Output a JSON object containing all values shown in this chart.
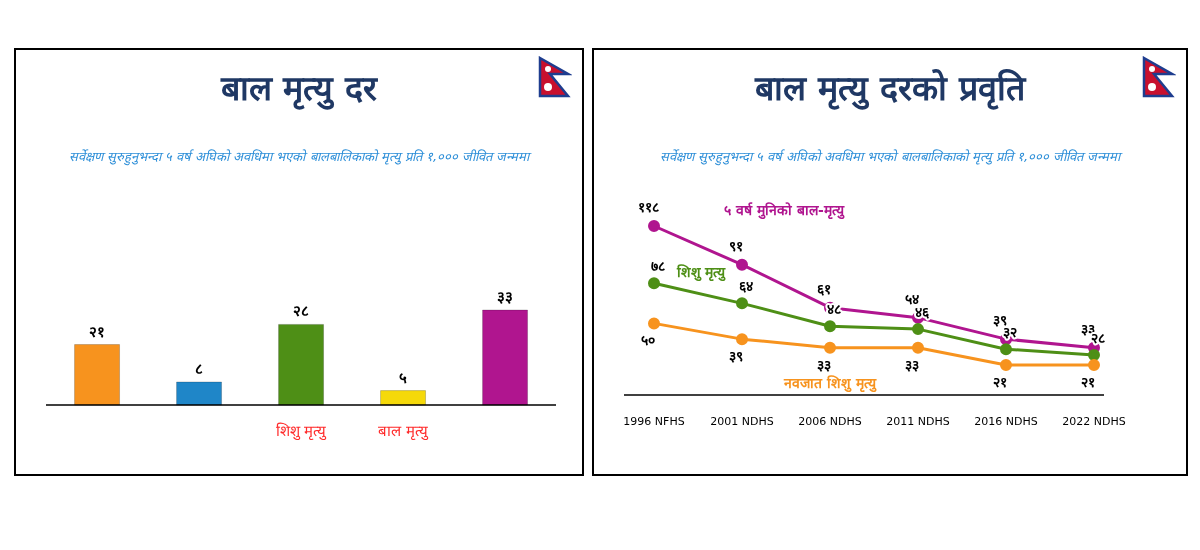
{
  "chart_data": [
    {
      "type": "bar",
      "title": "बाल मृत्यु दर",
      "subtitle": "सर्वेक्षण सुरुहुनुभन्दा ५ वर्ष अघिको अवधिमा भएको बालबालिकाको मृत्यु प्रति १,००० जीवित जन्ममा",
      "categories": [
        null,
        null,
        "शिशु मृत्यु",
        "बाल मृत्यु",
        null
      ],
      "values": [
        21,
        8,
        28,
        5,
        33
      ],
      "colors": [
        "#f7931e",
        "#1f86c8",
        "#4e8f16",
        "#f5d90a",
        "#b0158f"
      ],
      "value_labels": [
        "२१",
        "८",
        "२८",
        "५",
        "३३"
      ],
      "legend": false,
      "grid": false
    },
    {
      "type": "line",
      "title": "बाल मृत्यु दरको प्रवृति",
      "subtitle": "सर्वेक्षण सुरुहुनुभन्दा ५ वर्ष अघिको अवधिमा भएको बालबालिकाको मृत्यु प्रति १,००० जीवित जन्ममा",
      "categories": [
        "1996 NFHS",
        "2001 NDHS",
        "2006 NDHS",
        "2011 NDHS",
        "2016 NDHS",
        "2022 NDHS"
      ],
      "marker": "circle",
      "legend": false,
      "grid": false,
      "series": [
        {
          "name": "५ वर्ष मुनिको बाल-मृत्यु",
          "color": "#b0158f",
          "values": [
            118,
            91,
            61,
            54,
            39,
            33
          ],
          "value_labels": [
            "११८",
            "९१",
            "६१",
            "५४",
            "३९",
            "३३"
          ]
        },
        {
          "name": "शिशु मृत्यु",
          "color": "#4e8f16",
          "values": [
            78,
            64,
            48,
            46,
            32,
            28
          ],
          "value_labels": [
            "७८",
            "६४",
            "४८",
            "४६",
            "३२",
            "२८"
          ]
        },
        {
          "name": "नवजात शिशु मृत्यु",
          "color": "#f7931e",
          "values": [
            50,
            39,
            33,
            33,
            21,
            21
          ],
          "value_labels": [
            "५०",
            "३९",
            "३३",
            "३३",
            "२१",
            "२१"
          ]
        }
      ]
    }
  ]
}
